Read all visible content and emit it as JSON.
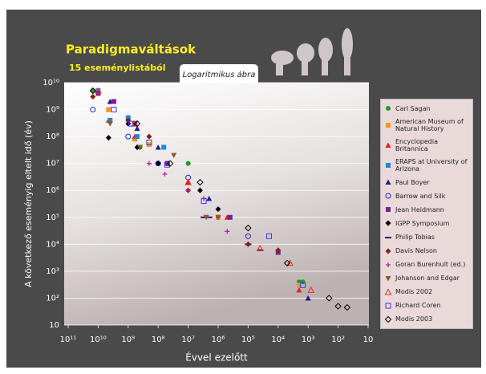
{
  "chart_data": {
    "type": "scatter",
    "title": "Paradigmaváltások",
    "subtitle": "15 eseménylistából",
    "tab_label": "Logaritmikus ábra",
    "x_label": "Évvel ezelőtt",
    "y_label": "A következő eseményig eltelt idő (év)",
    "log_x": true,
    "log_y": true,
    "x_reversed": true,
    "grid": true,
    "xlim": [
      100000000000.0,
      10
    ],
    "ylim": [
      10,
      10000000000.0
    ],
    "xticks": [
      {
        "value": 100000000000.0,
        "label": "10¹¹"
      },
      {
        "value": 10000000000.0,
        "label": "10¹⁰"
      },
      {
        "value": 1000000000.0,
        "label": "10⁹"
      },
      {
        "value": 100000000.0,
        "label": "10⁸"
      },
      {
        "value": 10000000.0,
        "label": "10⁷"
      },
      {
        "value": 1000000.0,
        "label": "10⁶"
      },
      {
        "value": 100000.0,
        "label": "10⁵"
      },
      {
        "value": 10000.0,
        "label": "10⁴"
      },
      {
        "value": 1000.0,
        "label": "10³"
      },
      {
        "value": 100,
        "label": "10²"
      },
      10
    ],
    "yticks": [
      10,
      {
        "value": 100,
        "label": "10²"
      },
      {
        "value": 1000.0,
        "label": "10³"
      },
      {
        "value": 10000.0,
        "label": "10⁴"
      },
      {
        "value": 100000.0,
        "label": "10⁵"
      },
      {
        "value": 1000000.0,
        "label": "10⁶"
      },
      {
        "value": 10000000.0,
        "label": "10⁷"
      },
      {
        "value": 100000000.0,
        "label": "10⁸"
      },
      {
        "value": 1000000000.0,
        "label": "10⁹"
      },
      {
        "value": 10000000000.0,
        "label": "10¹⁰"
      }
    ],
    "series": [
      {
        "name": "Carl Sagan",
        "marker": "circle",
        "color": "#1f9a1f",
        "x": [
          15000000000.0,
          1000000000.0,
          400000000.0,
          10000000.0,
          2000.0,
          1500.0
        ],
        "values": [
          5000000000.0,
          400000000.0,
          40000000.0,
          10000000.0,
          400,
          400
        ]
      },
      {
        "name": "American Museum of Natural History",
        "marker": "square",
        "color": "#f5961c",
        "x": [
          10000000000.0,
          4500000000.0,
          600000000.0,
          200000000.0,
          1000000.0,
          2000.0
        ],
        "values": [
          5000000000.0,
          1000000000.0,
          80000000.0,
          50000000.0,
          100000.0,
          300
        ]
      },
      {
        "name": "Encyclopedia Britannica",
        "marker": "triangle",
        "color": "#e4201c",
        "x": [
          4500000000.0,
          600000000.0,
          50000000.0,
          10000000.0,
          500000.0,
          2000.0
        ],
        "values": [
          400000000.0,
          100000000.0,
          10000000.0,
          2000000.0,
          100000.0,
          200
        ]
      },
      {
        "name": "ERAPS at University of Arizona",
        "marker": "square",
        "color": "#1c8ad6",
        "x": [
          10000000000.0,
          4000000000.0,
          1000000000.0,
          500000000.0,
          65000000.0
        ],
        "values": [
          5000000000.0,
          400000000.0,
          500000000.0,
          100000000.0,
          40000000.0
        ]
      },
      {
        "name": "Paul Boyer",
        "marker": "triangle",
        "color": "#1c1c9a",
        "x": [
          4000000000.0,
          500000000.0,
          100000000.0,
          2000000.0,
          1000.0
        ],
        "values": [
          2000000000.0,
          200000000.0,
          40000000.0,
          500000.0,
          100
        ]
      },
      {
        "name": "Barrow and Silk",
        "marker": "open-circle",
        "color": "#1c1cd6",
        "x": [
          15000000000.0,
          1000000000.0,
          100000000.0,
          10000000.0,
          100000.0
        ],
        "values": [
          1000000000.0,
          100000000.0,
          10000000.0,
          3000000.0,
          20000.0
        ]
      },
      {
        "name": "Jean Heidmann",
        "marker": "square",
        "color": "#7a1c9a",
        "x": [
          10000000000.0,
          3000000000.0,
          600000000.0,
          50000000.0,
          400000.0,
          10000.0
        ],
        "values": [
          4000000000.0,
          2000000000.0,
          300000000.0,
          10000000.0,
          100000.0,
          5000.0
        ]
      },
      {
        "name": "IGPP Symposium",
        "marker": "diamond",
        "color": "#000000",
        "x": [
          4500000000.0,
          1000000000.0,
          500000000.0,
          100000000.0,
          4000000.0,
          1000000.0
        ],
        "values": [
          90000000.0,
          300000000.0,
          40000000.0,
          10000000.0,
          1000000.0,
          200000.0
        ]
      },
      {
        "name": "Philip Tobias",
        "marker": "dash",
        "color": "#1c1c7a",
        "x": [
          3000000.0,
          2000000.0,
          100000.0,
          40000.0
        ],
        "values": [
          100000.0,
          100000.0,
          10000.0,
          6000.0
        ]
      },
      {
        "name": "Davis Nelson",
        "marker": "diamond",
        "color": "#8a1c1c",
        "x": [
          15000000000.0,
          1000000000.0,
          200000000.0,
          10000000.0,
          100000.0,
          10000.0
        ],
        "values": [
          3000000000.0,
          400000000.0,
          100000000.0,
          1000000.0,
          10000.0,
          6000.0
        ]
      },
      {
        "name": "Goran Burenhult (ed.)",
        "marker": "plus",
        "color": "#c01c9a",
        "x": [
          200000000.0,
          60000000.0,
          10000000.0,
          3000000.0,
          1000000.0,
          500000.0
        ],
        "values": [
          10000000.0,
          4000000.0,
          1000000.0,
          500000.0,
          100000.0,
          30000.0
        ]
      },
      {
        "name": "Johanson and Edgar",
        "marker": "down-triangle",
        "color": "#8a5a1c",
        "x": [
          4000000000.0,
          400000000.0,
          30000000.0,
          2500000.0,
          1000000.0
        ],
        "values": [
          300000000.0,
          40000000.0,
          20000000.0,
          100000.0,
          100000.0
        ]
      },
      {
        "name": "Modis 2002",
        "marker": "open-triangle",
        "color": "#e4301c",
        "x": [
          10000000000.0,
          600000000.0,
          10000000.0,
          40000.0,
          4000.0,
          800
        ],
        "values": [
          5000000000.0,
          300000000.0,
          2000000.0,
          7000.0,
          2000.0,
          200
        ]
      },
      {
        "name": "Richard Coren",
        "marker": "open-square",
        "color": "#3a3ae4",
        "x": [
          3000000000.0,
          800000000.0,
          200000000.0,
          50000000.0,
          3000000.0,
          20000.0,
          1500.0
        ],
        "values": [
          1000000000.0,
          300000000.0,
          60000000.0,
          9000000.0,
          400000.0,
          20000.0,
          300
        ]
      },
      {
        "name": "Modis 2003",
        "marker": "open-diamond",
        "color": "#000000",
        "x": [
          15000000000.0,
          500000000.0,
          40000000.0,
          4000000.0,
          100000.0,
          5000.0,
          200,
          100,
          50
        ],
        "values": [
          5000000000.0,
          300000000.0,
          10000000.0,
          2000000.0,
          40000.0,
          2000.0,
          100,
          50,
          45
        ]
      }
    ]
  }
}
